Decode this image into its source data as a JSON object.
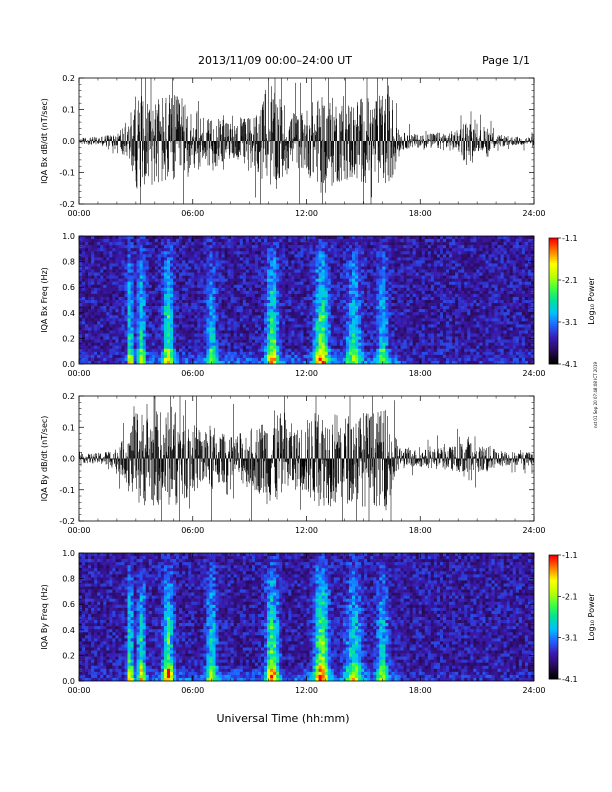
{
  "header": {
    "date_range": "2013/11/09   00:00–24:00 UT",
    "page": "Page 1/1"
  },
  "footer": {
    "x_axis_title": "Universal Time (hh:mm)"
  },
  "side_stamp": "nst 01 Sep 20 07:48:08 ICT 2019",
  "colors": {
    "waveform": "#000000",
    "background": "#ffffff",
    "colormap": [
      "#000000",
      "#2a0a5a",
      "#3a1ab0",
      "#2060ff",
      "#00c0ff",
      "#00e0a0",
      "#40ff40",
      "#c0ff00",
      "#ffff00",
      "#ff8000",
      "#ff0000"
    ]
  },
  "colorbar": {
    "title": "Log₁₀ Power",
    "ticks": [
      "-1.1",
      "-2.1",
      "-3.1",
      "-4.1"
    ]
  },
  "chart_data": [
    {
      "type": "line",
      "name": "bx-waveform",
      "ylabel": "IQA Bx dB/dt (nT/sec)",
      "xlim": [
        0,
        24
      ],
      "ylim": [
        -0.2,
        0.2
      ],
      "x_ticks": [
        "00:00",
        "06:00",
        "12:00",
        "18:00",
        "24:00"
      ],
      "y_ticks": [
        "0.2",
        "0.1",
        "0.0",
        "-0.1",
        "-0.2"
      ],
      "envelope": {
        "hours": [
          0,
          1,
          2,
          2.6,
          3,
          3.5,
          4,
          4.5,
          5,
          5.5,
          6,
          6.5,
          7,
          7.5,
          8,
          8.5,
          9,
          9.5,
          10,
          10.5,
          11,
          11.5,
          12,
          12.5,
          13,
          13.5,
          14,
          14.5,
          15,
          15.5,
          16,
          16.5,
          16.8,
          17,
          18,
          19,
          20,
          20.5,
          20.8,
          21,
          21.5,
          22,
          23,
          24
        ],
        "amplitude": [
          0.015,
          0.02,
          0.04,
          0.1,
          0.22,
          0.2,
          0.2,
          0.22,
          0.22,
          0.18,
          0.15,
          0.12,
          0.14,
          0.1,
          0.08,
          0.1,
          0.12,
          0.15,
          0.22,
          0.22,
          0.16,
          0.12,
          0.15,
          0.2,
          0.2,
          0.2,
          0.18,
          0.2,
          0.2,
          0.2,
          0.22,
          0.22,
          0.06,
          0.04,
          0.03,
          0.04,
          0.05,
          0.12,
          0.06,
          0.04,
          0.08,
          0.03,
          0.02,
          0.02
        ]
      }
    },
    {
      "type": "heatmap",
      "name": "bx-spectrogram",
      "ylabel": "IQA Bx Freq (Hz)",
      "xlim": [
        0,
        24
      ],
      "ylim": [
        0,
        1.0
      ],
      "x_ticks": [
        "00:00",
        "06:00",
        "12:00",
        "18:00",
        "24:00"
      ],
      "y_ticks": [
        "1.0",
        "0.8",
        "0.6",
        "0.4",
        "0.2",
        "0.0"
      ],
      "zlim": [
        -4.1,
        -1.1
      ],
      "bursts": [
        {
          "hour": 2.7,
          "peak": -2.7,
          "width": 0.15
        },
        {
          "hour": 3.3,
          "peak": -2.8,
          "width": 0.2
        },
        {
          "hour": 4.7,
          "peak": -2.5,
          "width": 0.25
        },
        {
          "hour": 7.0,
          "peak": -3.0,
          "width": 0.25
        },
        {
          "hour": 10.2,
          "peak": -2.5,
          "width": 0.3
        },
        {
          "hour": 12.8,
          "peak": -2.3,
          "width": 0.35
        },
        {
          "hour": 14.5,
          "peak": -3.0,
          "width": 0.4
        },
        {
          "hour": 16.0,
          "peak": -3.1,
          "width": 0.3
        }
      ]
    },
    {
      "type": "line",
      "name": "by-waveform",
      "ylabel": "IQA By dB/dt (nT/sec)",
      "xlim": [
        0,
        24
      ],
      "ylim": [
        -0.2,
        0.2
      ],
      "x_ticks": [
        "00:00",
        "06:00",
        "12:00",
        "18:00",
        "24:00"
      ],
      "y_ticks": [
        "0.2",
        "0.1",
        "0.0",
        "-0.1",
        "-0.2"
      ],
      "envelope": {
        "hours": [
          0,
          1,
          2,
          2.6,
          3,
          3.5,
          4,
          4.5,
          5,
          5.5,
          6,
          6.5,
          7,
          7.5,
          8,
          8.5,
          9,
          9.5,
          10,
          10.5,
          11,
          11.5,
          12,
          12.5,
          13,
          13.5,
          14,
          14.5,
          15,
          15.5,
          16,
          16.5,
          16.8,
          17,
          18,
          19,
          20,
          20.5,
          20.8,
          21,
          21.5,
          22,
          23,
          24
        ],
        "amplitude": [
          0.02,
          0.025,
          0.05,
          0.12,
          0.22,
          0.22,
          0.22,
          0.22,
          0.22,
          0.2,
          0.16,
          0.14,
          0.16,
          0.12,
          0.1,
          0.12,
          0.14,
          0.16,
          0.22,
          0.22,
          0.18,
          0.14,
          0.18,
          0.22,
          0.22,
          0.22,
          0.2,
          0.22,
          0.22,
          0.22,
          0.22,
          0.22,
          0.07,
          0.05,
          0.04,
          0.05,
          0.06,
          0.11,
          0.07,
          0.05,
          0.07,
          0.04,
          0.03,
          0.03
        ]
      }
    },
    {
      "type": "heatmap",
      "name": "by-spectrogram",
      "ylabel": "IQA By Freq (Hz)",
      "xlim": [
        0,
        24
      ],
      "ylim": [
        0,
        1.0
      ],
      "x_ticks": [
        "00:00",
        "06:00",
        "12:00",
        "18:00",
        "24:00"
      ],
      "y_ticks": [
        "1.0",
        "0.8",
        "0.6",
        "0.4",
        "0.2",
        "0.0"
      ],
      "zlim": [
        -4.1,
        -1.1
      ],
      "bursts": [
        {
          "hour": 2.7,
          "peak": -2.6,
          "width": 0.15
        },
        {
          "hour": 3.3,
          "peak": -2.7,
          "width": 0.2
        },
        {
          "hour": 4.7,
          "peak": -2.3,
          "width": 0.25
        },
        {
          "hour": 7.0,
          "peak": -2.8,
          "width": 0.25
        },
        {
          "hour": 10.2,
          "peak": -2.3,
          "width": 0.3
        },
        {
          "hour": 12.8,
          "peak": -2.1,
          "width": 0.35
        },
        {
          "hour": 14.5,
          "peak": -2.8,
          "width": 0.4
        },
        {
          "hour": 16.0,
          "peak": -3.0,
          "width": 0.3
        }
      ]
    }
  ]
}
